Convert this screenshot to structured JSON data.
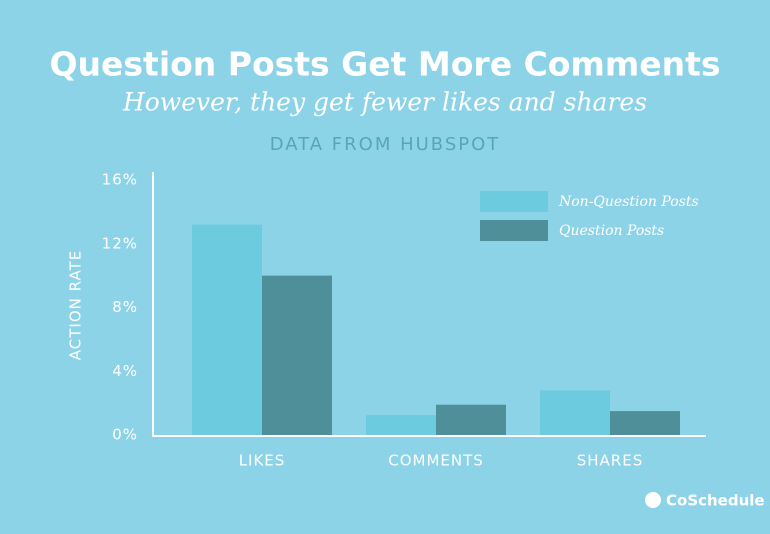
{
  "chart_data": {
    "type": "bar",
    "title": "Question Posts Get More Comments",
    "subtitle": "However, they get fewer likes and shares",
    "source": "DATA FROM HUBSPOT",
    "y_label": "ACTION RATE",
    "logo": "CoSchedule",
    "categories": [
      "LIKES",
      "COMMENTS",
      "SHARES"
    ],
    "series": [
      {
        "name": "Non-Question Posts",
        "color": "#6dcbe0",
        "values": [
          13.2,
          1.25,
          2.8
        ]
      },
      {
        "name": "Question Posts",
        "color": "#4e8f9a",
        "values": [
          10.0,
          1.9,
          1.5
        ]
      }
    ],
    "ylim": [
      0,
      16
    ],
    "yticks": [
      {
        "value": 0,
        "label": "0%"
      },
      {
        "value": 4,
        "label": "4%"
      },
      {
        "value": 8,
        "label": "8%"
      },
      {
        "value": 12,
        "label": "12%"
      },
      {
        "value": 16,
        "label": "16%"
      }
    ],
    "grid": false,
    "legend": "top-right"
  }
}
